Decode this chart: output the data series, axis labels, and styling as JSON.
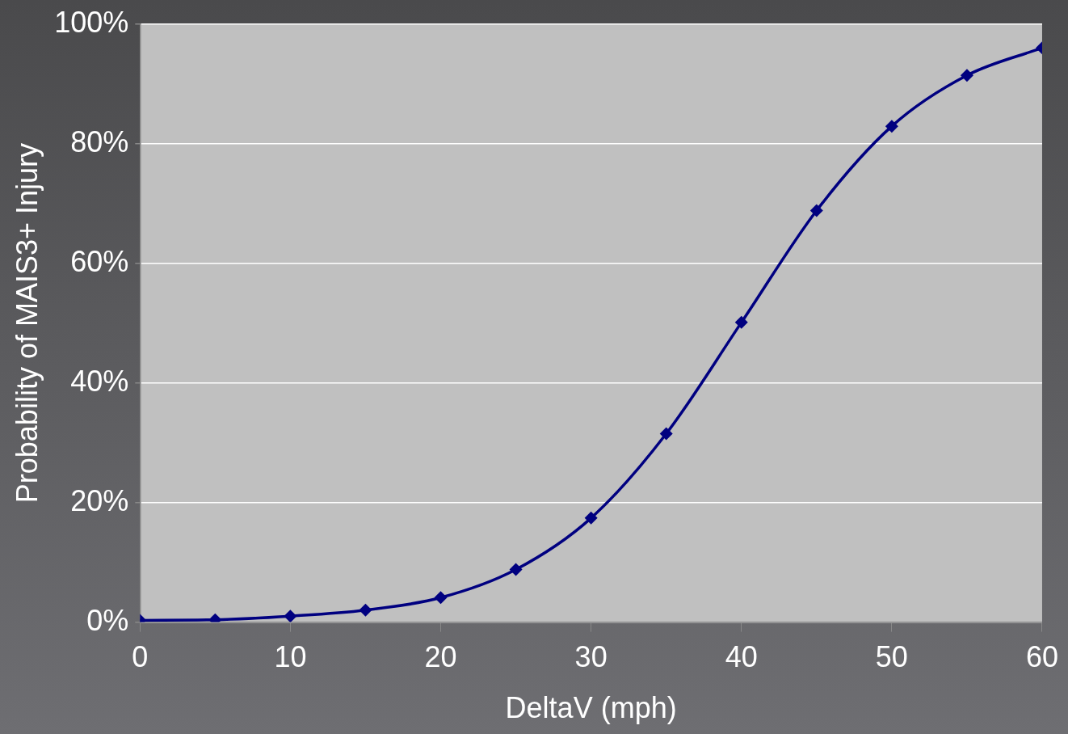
{
  "chart_data": {
    "type": "line",
    "xlabel": "DeltaV (mph)",
    "ylabel": "Probability of MAIS3+ Injury",
    "x": [
      0,
      5,
      10,
      15,
      20,
      25,
      30,
      35,
      40,
      45,
      50,
      55,
      60
    ],
    "series": [
      {
        "color": "#000080",
        "values": [
          0.3,
          0.4,
          1.0,
          2.0,
          4.1,
          8.8,
          17.4,
          31.5,
          50.1,
          68.8,
          82.9,
          91.4,
          96.0
        ]
      }
    ],
    "xlim": [
      0,
      60
    ],
    "xticks": [
      0,
      10,
      20,
      30,
      40,
      50,
      60
    ],
    "ylim": [
      0,
      100
    ],
    "yticks": [
      {
        "value": 0,
        "label": "0%"
      },
      {
        "value": 20,
        "label": "20%"
      },
      {
        "value": 40,
        "label": "40%"
      },
      {
        "value": 60,
        "label": "60%"
      },
      {
        "value": 80,
        "label": "80%"
      },
      {
        "value": 100,
        "label": "100%"
      }
    ],
    "grid": "y",
    "legend": false,
    "marker": "diamond",
    "line_style": "solid"
  }
}
